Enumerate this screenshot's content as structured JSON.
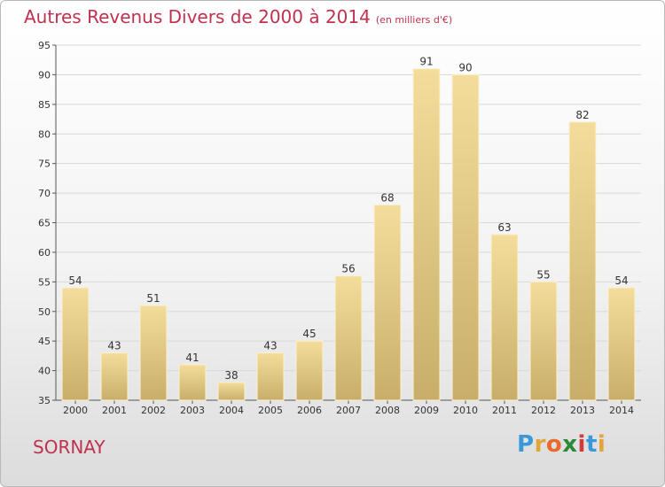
{
  "header": {
    "title": "Autres Revenus Divers de 2000 à 2014",
    "subtitle": "(en milliers d'€)"
  },
  "footer": {
    "city": "SORNAY",
    "logo_text": "Proxiti",
    "logo_letters": [
      "P",
      "r",
      "o",
      "x",
      "i",
      "t",
      "i"
    ],
    "logo_colors": [
      "#3a9ad9",
      "#e2a53b",
      "#e86a2c",
      "#2a8a3a",
      "#d23b3b",
      "#3a9ad9",
      "#e2a53b"
    ]
  },
  "chart_data": {
    "type": "bar",
    "title": "Autres Revenus Divers de 2000 à 2014",
    "categories": [
      "2000",
      "2001",
      "2002",
      "2003",
      "2004",
      "2005",
      "2006",
      "2007",
      "2008",
      "2009",
      "2010",
      "2011",
      "2012",
      "2013",
      "2014"
    ],
    "values": [
      54,
      43,
      51,
      41,
      38,
      43,
      45,
      56,
      68,
      91,
      90,
      63,
      55,
      82,
      54
    ],
    "ylim": [
      35,
      95
    ],
    "yticks": [
      35,
      40,
      45,
      50,
      55,
      60,
      65,
      70,
      75,
      80,
      85,
      90,
      95
    ],
    "grid": true,
    "colors": {
      "bar_top": "#f4dd9c",
      "bar_bottom": "#c8ae6a",
      "grid": "#d8d8d8"
    }
  }
}
